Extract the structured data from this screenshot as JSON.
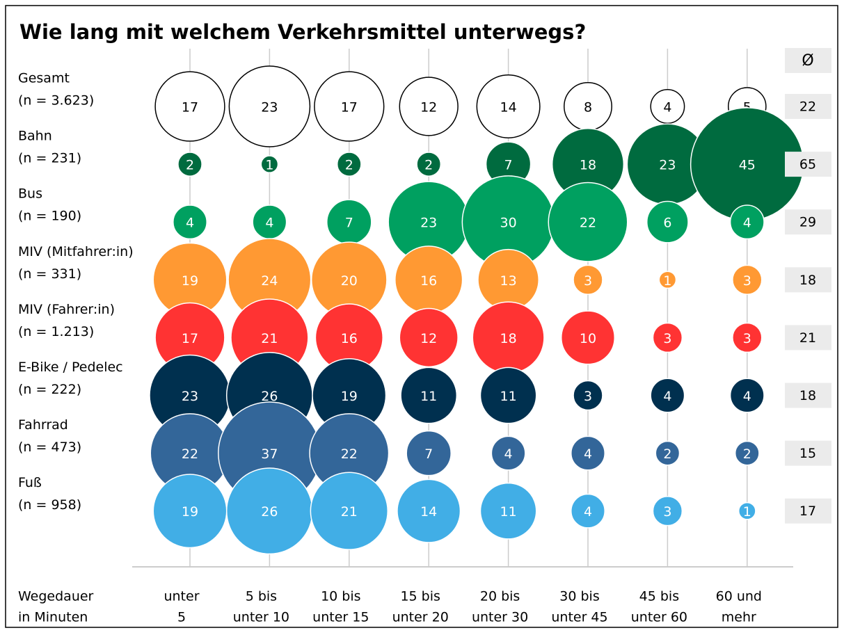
{
  "chart_data": {
    "type": "bubble",
    "title": "Wie lang mit welchem Verkehrsmittel unterwegs?",
    "x_label": [
      "Wegedauer",
      "in Minuten"
    ],
    "categories": [
      [
        "unter",
        "5"
      ],
      [
        "5 bis",
        "unter 10"
      ],
      [
        "10 bis",
        "unter 15"
      ],
      [
        "15 bis",
        "unter 20"
      ],
      [
        "20 bis",
        "unter 30"
      ],
      [
        "30 bis",
        "unter 45"
      ],
      [
        "45 bis",
        "unter 60"
      ],
      [
        "60 und",
        "mehr"
      ]
    ],
    "average_label": "Ø",
    "series": [
      {
        "name": "Gesamt",
        "n_label": "(n = 3.623)",
        "color": "#ffffff",
        "values": [
          17,
          23,
          17,
          12,
          14,
          8,
          4,
          5
        ],
        "average": 22
      },
      {
        "name": "Bahn",
        "n_label": "(n = 231)",
        "color": "#006b3f",
        "values": [
          2,
          1,
          2,
          2,
          7,
          18,
          23,
          45
        ],
        "average": 65
      },
      {
        "name": "Bus",
        "n_label": "(n = 190)",
        "color": "#00a060",
        "values": [
          4,
          4,
          7,
          23,
          30,
          22,
          6,
          4
        ],
        "average": 29
      },
      {
        "name": "MIV (Mitfahrer:in)",
        "n_label": "(n = 331)",
        "color": "#ff9933",
        "values": [
          19,
          24,
          20,
          16,
          13,
          3,
          1,
          3
        ],
        "average": 18
      },
      {
        "name": "MIV (Fahrer:in)",
        "n_label": "(n = 1.213)",
        "color": "#ff3333",
        "values": [
          17,
          21,
          16,
          12,
          18,
          10,
          3,
          3
        ],
        "average": 21
      },
      {
        "name": "E-Bike / Pedelec",
        "n_label": "(n = 222)",
        "color": "#00304f",
        "values": [
          23,
          26,
          19,
          11,
          11,
          3,
          4,
          4
        ],
        "average": 18
      },
      {
        "name": "Fahrrad",
        "n_label": "(n = 473)",
        "color": "#336699",
        "values": [
          22,
          37,
          22,
          7,
          4,
          4,
          2,
          2
        ],
        "average": 15
      },
      {
        "name": "Fuß",
        "n_label": "(n = 958)",
        "color": "#41aee6",
        "values": [
          19,
          26,
          21,
          14,
          11,
          4,
          3,
          1
        ],
        "average": 17
      }
    ]
  }
}
